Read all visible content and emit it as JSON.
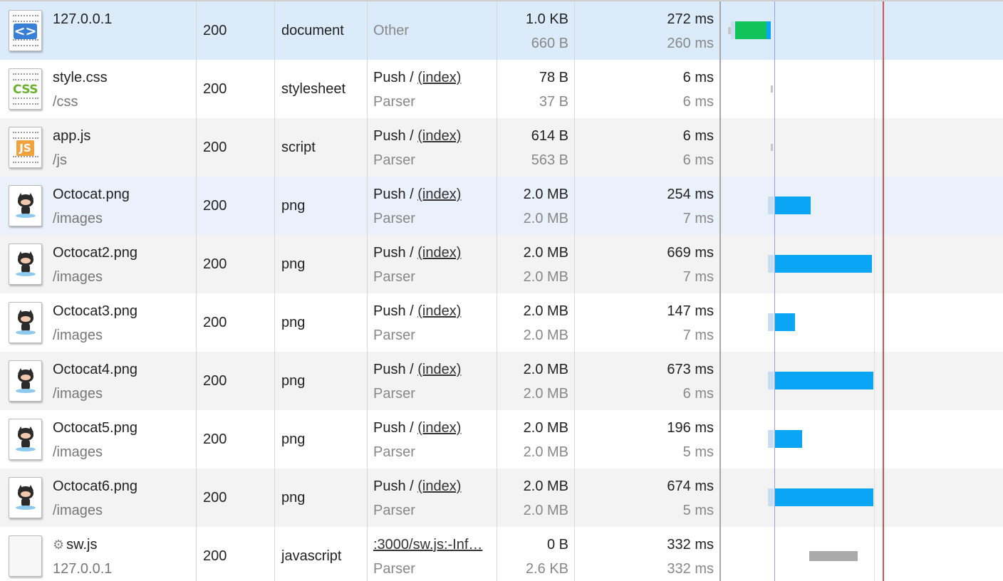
{
  "rows": [
    {
      "name": "127.0.0.1",
      "path": "",
      "icon": "html-document-icon",
      "status": "200",
      "type": "document",
      "initiator": "Other",
      "initiator_link": "",
      "initiator_sub": "",
      "size": "1.0 KB",
      "size_sub": "660 B",
      "time": "272 ms",
      "time_sub": "260 ms"
    },
    {
      "name": "style.css",
      "path": "/css",
      "icon": "css-file-icon",
      "status": "200",
      "type": "stylesheet",
      "initiator": "Push / ",
      "initiator_link": "(index)",
      "initiator_sub": "Parser",
      "size": "78 B",
      "size_sub": "37 B",
      "time": "6 ms",
      "time_sub": "6 ms"
    },
    {
      "name": "app.js",
      "path": "/js",
      "icon": "js-file-icon",
      "status": "200",
      "type": "script",
      "initiator": "Push / ",
      "initiator_link": "(index)",
      "initiator_sub": "Parser",
      "size": "614 B",
      "size_sub": "563 B",
      "time": "6 ms",
      "time_sub": "6 ms"
    },
    {
      "name": "Octocat.png",
      "path": "/images",
      "icon": "octocat-image-icon",
      "status": "200",
      "type": "png",
      "initiator": "Push / ",
      "initiator_link": "(index)",
      "initiator_sub": "Parser",
      "size": "2.0 MB",
      "size_sub": "2.0 MB",
      "time": "254 ms",
      "time_sub": "7 ms"
    },
    {
      "name": "Octocat2.png",
      "path": "/images",
      "icon": "octocat-image-icon",
      "status": "200",
      "type": "png",
      "initiator": "Push / ",
      "initiator_link": "(index)",
      "initiator_sub": "Parser",
      "size": "2.0 MB",
      "size_sub": "2.0 MB",
      "time": "669 ms",
      "time_sub": "7 ms"
    },
    {
      "name": "Octocat3.png",
      "path": "/images",
      "icon": "octocat-image-icon",
      "status": "200",
      "type": "png",
      "initiator": "Push / ",
      "initiator_link": "(index)",
      "initiator_sub": "Parser",
      "size": "2.0 MB",
      "size_sub": "2.0 MB",
      "time": "147 ms",
      "time_sub": "7 ms"
    },
    {
      "name": "Octocat4.png",
      "path": "/images",
      "icon": "octocat-image-icon",
      "status": "200",
      "type": "png",
      "initiator": "Push / ",
      "initiator_link": "(index)",
      "initiator_sub": "Parser",
      "size": "2.0 MB",
      "size_sub": "2.0 MB",
      "time": "673 ms",
      "time_sub": "6 ms"
    },
    {
      "name": "Octocat5.png",
      "path": "/images",
      "icon": "octocat-image-icon",
      "status": "200",
      "type": "png",
      "initiator": "Push / ",
      "initiator_link": "(index)",
      "initiator_sub": "Parser",
      "size": "2.0 MB",
      "size_sub": "2.0 MB",
      "time": "196 ms",
      "time_sub": "5 ms"
    },
    {
      "name": "Octocat6.png",
      "path": "/images",
      "icon": "octocat-image-icon",
      "status": "200",
      "type": "png",
      "initiator": "Push / ",
      "initiator_link": "(index)",
      "initiator_sub": "Parser",
      "size": "2.0 MB",
      "size_sub": "2.0 MB",
      "time": "674 ms",
      "time_sub": "5 ms"
    },
    {
      "name": "sw.js",
      "path": "127.0.0.1",
      "icon": "blank-file-icon",
      "name_prefix_icon": "gear-icon",
      "status": "200",
      "type": "javascript",
      "initiator": "",
      "initiator_link": ":3000/sw.js:-Inf…",
      "initiator_sub": "Parser",
      "size": "0 B",
      "size_sub": "2.6 KB",
      "time": "332 ms",
      "time_sub": "332 ms"
    }
  ],
  "colors": {
    "selected_row": "#dcebfa",
    "receiving_bar": "#0aa6f5",
    "waiting_bar": "#12c35c",
    "dom_content_loaded_line": "#9a9ef0",
    "load_line": "#d9534f"
  }
}
